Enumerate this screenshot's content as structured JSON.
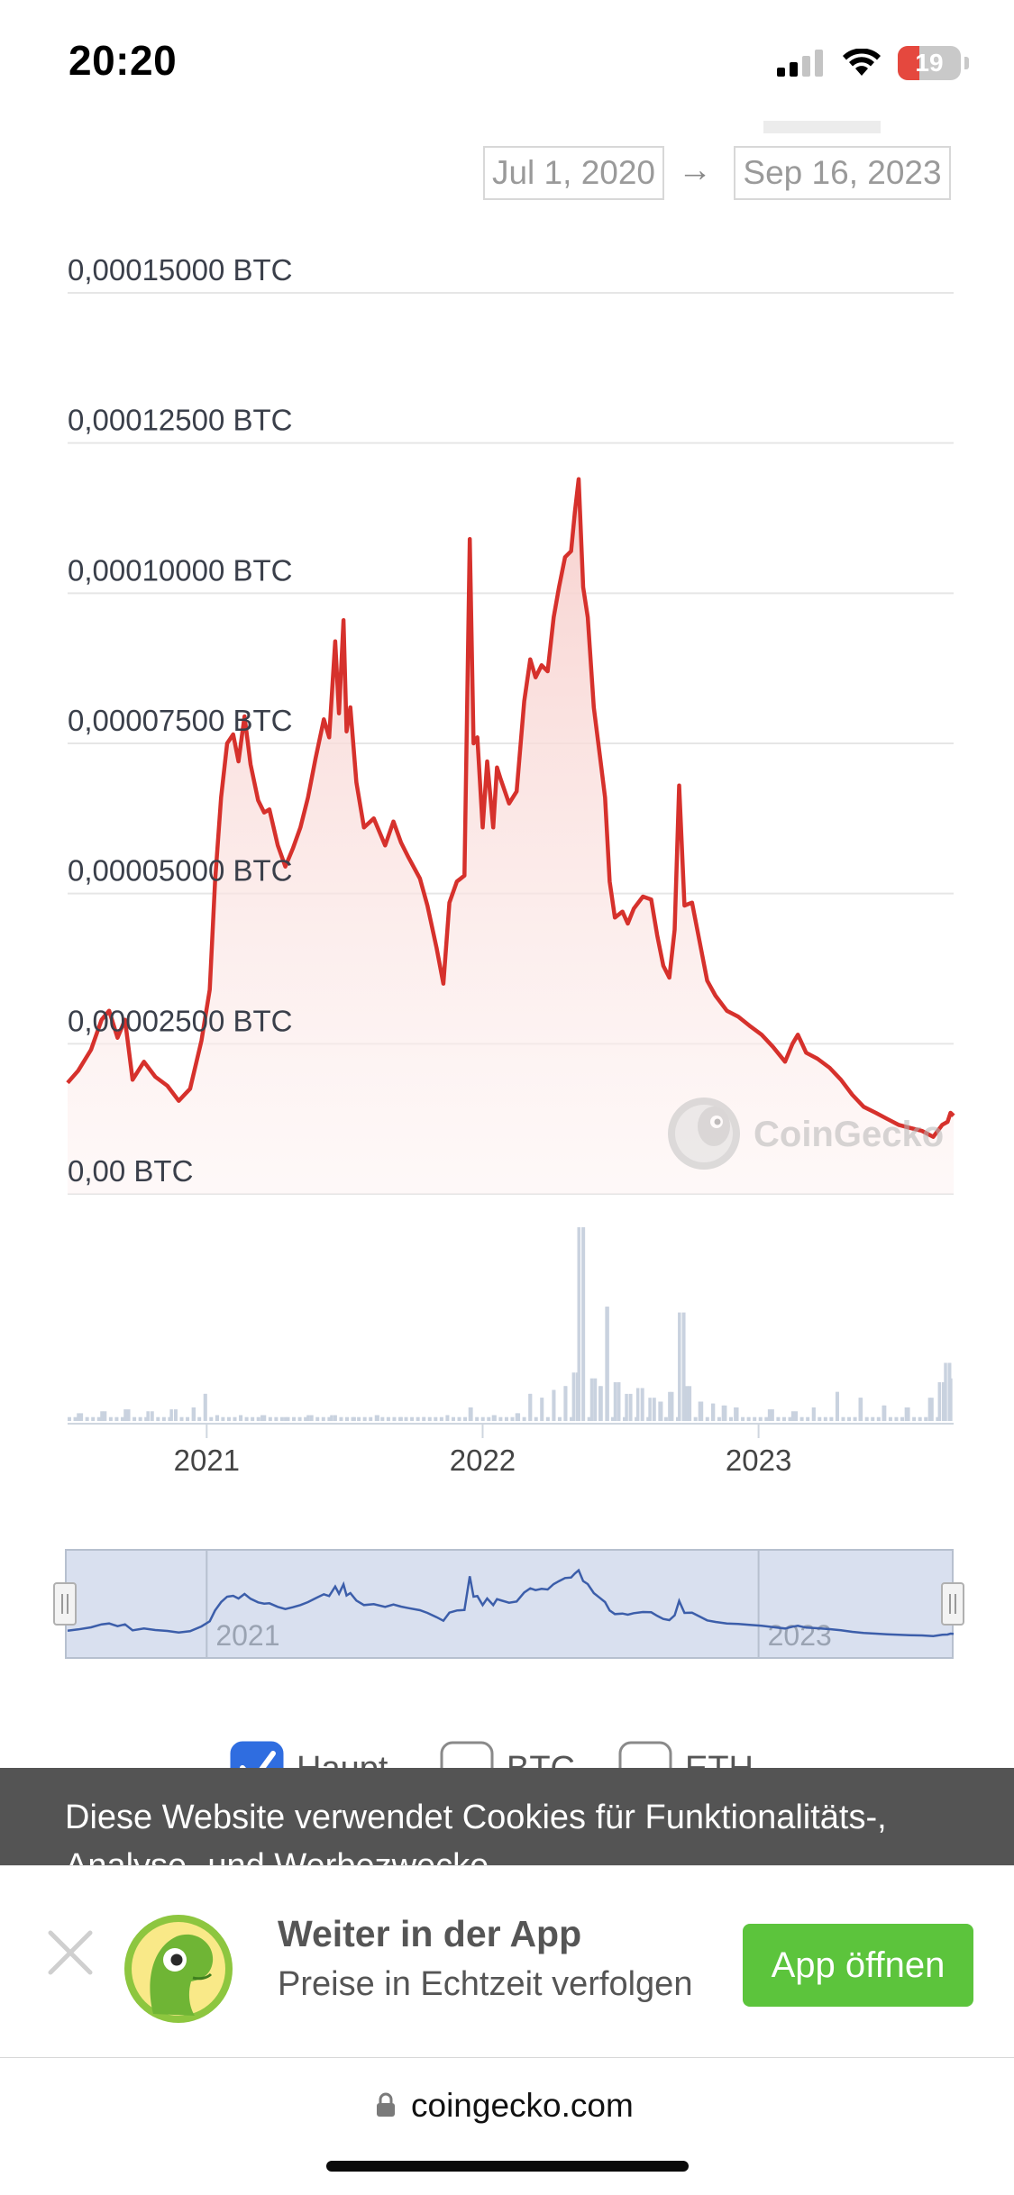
{
  "status_bar": {
    "time": "20:20",
    "battery_level": "19",
    "icons": [
      "cellular-signal-icon",
      "wifi-icon",
      "battery-icon"
    ]
  },
  "date_range": {
    "from": "Jul 1, 2020",
    "arrow": "→",
    "to": "Sep 16, 2023"
  },
  "watermark": "CoinGecko",
  "chart_data": {
    "type": "area",
    "price_color": "#d6312c",
    "volume_color": "#c9d2df",
    "navigator_color": "#3c5eaa",
    "y_unit": "BTC",
    "y_tick_labels": [
      "0,00015000 BTC",
      "0,00012500 BTC",
      "0,00010000 BTC",
      "0,00007500 BTC",
      "0,00005000 BTC",
      "0,00002500 BTC",
      "0,00 BTC"
    ],
    "y_ticks": [
      0.00015,
      0.000125,
      0.0001,
      7.5e-05,
      5e-05,
      2.5e-05,
      0
    ],
    "ylim": [
      0,
      0.00015
    ],
    "x_tick_labels": [
      "2021",
      "2022",
      "2023"
    ],
    "x_ticks": [
      "2021-01-01",
      "2022-01-01",
      "2023-01-01"
    ],
    "xlim": [
      "2020-07-01",
      "2023-09-16"
    ],
    "grid": true,
    "series": [
      {
        "points": [
          [
            "2020-07-01",
            1.85e-05
          ],
          [
            "2020-07-15",
            2.05e-05
          ],
          [
            "2020-08-01",
            2.4e-05
          ],
          [
            "2020-08-15",
            2.9e-05
          ],
          [
            "2020-08-25",
            3.05e-05
          ],
          [
            "2020-09-05",
            2.6e-05
          ],
          [
            "2020-09-15",
            2.9e-05
          ],
          [
            "2020-09-25",
            1.9e-05
          ],
          [
            "2020-10-10",
            2.2e-05
          ],
          [
            "2020-10-25",
            1.95e-05
          ],
          [
            "2020-11-10",
            1.8e-05
          ],
          [
            "2020-11-25",
            1.55e-05
          ],
          [
            "2020-12-10",
            1.75e-05
          ],
          [
            "2020-12-25",
            2.55e-05
          ],
          [
            "2021-01-05",
            3.4e-05
          ],
          [
            "2021-01-12",
            5.2e-05
          ],
          [
            "2021-01-20",
            6.6e-05
          ],
          [
            "2021-01-28",
            7.5e-05
          ],
          [
            "2021-02-05",
            7.65e-05
          ],
          [
            "2021-02-12",
            7.2e-05
          ],
          [
            "2021-02-20",
            7.95e-05
          ],
          [
            "2021-02-28",
            7.15e-05
          ],
          [
            "2021-03-10",
            6.55e-05
          ],
          [
            "2021-03-18",
            6.35e-05
          ],
          [
            "2021-03-25",
            6.4e-05
          ],
          [
            "2021-04-05",
            5.8e-05
          ],
          [
            "2021-04-15",
            5.45e-05
          ],
          [
            "2021-04-25",
            5.75e-05
          ],
          [
            "2021-05-05",
            6.1e-05
          ],
          [
            "2021-05-15",
            6.6e-05
          ],
          [
            "2021-05-25",
            7.25e-05
          ],
          [
            "2021-06-05",
            7.9e-05
          ],
          [
            "2021-06-12",
            7.6e-05
          ],
          [
            "2021-06-20",
            9.2e-05
          ],
          [
            "2021-06-25",
            8e-05
          ],
          [
            "2021-07-01",
            9.55e-05
          ],
          [
            "2021-07-05",
            7.7e-05
          ],
          [
            "2021-07-10",
            8.1e-05
          ],
          [
            "2021-07-18",
            6.85e-05
          ],
          [
            "2021-07-28",
            6.1e-05
          ],
          [
            "2021-08-10",
            6.25e-05
          ],
          [
            "2021-08-25",
            5.8e-05
          ],
          [
            "2021-09-05",
            6.2e-05
          ],
          [
            "2021-09-15",
            5.85e-05
          ],
          [
            "2021-09-25",
            5.6e-05
          ],
          [
            "2021-10-10",
            5.25e-05
          ],
          [
            "2021-10-20",
            4.8e-05
          ],
          [
            "2021-11-01",
            4.1e-05
          ],
          [
            "2021-11-10",
            3.5e-05
          ],
          [
            "2021-11-18",
            4.85e-05
          ],
          [
            "2021-11-28",
            5.2e-05
          ],
          [
            "2021-12-08",
            5.3e-05
          ],
          [
            "2021-12-15",
            0.000109
          ],
          [
            "2021-12-20",
            7.5e-05
          ],
          [
            "2021-12-25",
            7.6e-05
          ],
          [
            "2022-01-01",
            6.1e-05
          ],
          [
            "2022-01-07",
            7.2e-05
          ],
          [
            "2022-01-15",
            6.1e-05
          ],
          [
            "2022-01-20",
            7.1e-05
          ],
          [
            "2022-01-25",
            6.9e-05
          ],
          [
            "2022-02-05",
            6.5e-05
          ],
          [
            "2022-02-15",
            6.7e-05
          ],
          [
            "2022-02-25",
            8.2e-05
          ],
          [
            "2022-03-05",
            8.9e-05
          ],
          [
            "2022-03-12",
            8.6e-05
          ],
          [
            "2022-03-20",
            8.8e-05
          ],
          [
            "2022-03-28",
            8.7e-05
          ],
          [
            "2022-04-05",
            9.6e-05
          ],
          [
            "2022-04-12",
            0.000101
          ],
          [
            "2022-04-20",
            0.000106
          ],
          [
            "2022-04-28",
            0.000107
          ],
          [
            "2022-05-03",
            0.0001135
          ],
          [
            "2022-05-08",
            0.000119
          ],
          [
            "2022-05-14",
            0.000101
          ],
          [
            "2022-05-20",
            9.6e-05
          ],
          [
            "2022-05-28",
            8.1e-05
          ],
          [
            "2022-06-05",
            7.3e-05
          ],
          [
            "2022-06-12",
            6.6e-05
          ],
          [
            "2022-06-18",
            5.2e-05
          ],
          [
            "2022-06-25",
            4.6e-05
          ],
          [
            "2022-07-05",
            4.7e-05
          ],
          [
            "2022-07-12",
            4.5e-05
          ],
          [
            "2022-07-20",
            4.75e-05
          ],
          [
            "2022-08-01",
            4.95e-05
          ],
          [
            "2022-08-12",
            4.9e-05
          ],
          [
            "2022-08-20",
            4.3e-05
          ],
          [
            "2022-08-28",
            3.8e-05
          ],
          [
            "2022-09-05",
            3.6e-05
          ],
          [
            "2022-09-12",
            4.4e-05
          ],
          [
            "2022-09-18",
            6.8e-05
          ],
          [
            "2022-09-25",
            4.8e-05
          ],
          [
            "2022-10-05",
            4.85e-05
          ],
          [
            "2022-10-15",
            4.2e-05
          ],
          [
            "2022-10-25",
            3.55e-05
          ],
          [
            "2022-11-05",
            3.3e-05
          ],
          [
            "2022-11-20",
            3.05e-05
          ],
          [
            "2022-12-05",
            2.95e-05
          ],
          [
            "2022-12-20",
            2.8e-05
          ],
          [
            "2023-01-05",
            2.65e-05
          ],
          [
            "2023-01-20",
            2.45e-05
          ],
          [
            "2023-02-05",
            2.2e-05
          ],
          [
            "2023-02-15",
            2.5e-05
          ],
          [
            "2023-02-22",
            2.65e-05
          ],
          [
            "2023-03-05",
            2.35e-05
          ],
          [
            "2023-03-20",
            2.25e-05
          ],
          [
            "2023-04-05",
            2.1e-05
          ],
          [
            "2023-04-20",
            1.9e-05
          ],
          [
            "2023-05-05",
            1.65e-05
          ],
          [
            "2023-05-20",
            1.45e-05
          ],
          [
            "2023-06-05",
            1.35e-05
          ],
          [
            "2023-06-20",
            1.25e-05
          ],
          [
            "2023-07-05",
            1.15e-05
          ],
          [
            "2023-07-20",
            1.1e-05
          ],
          [
            "2023-08-05",
            1.05e-05
          ],
          [
            "2023-08-20",
            9.5e-06
          ],
          [
            "2023-09-01",
            1.15e-05
          ],
          [
            "2023-09-08",
            1.2e-05
          ],
          [
            "2023-09-12",
            1.35e-05
          ],
          [
            "2023-09-16",
            1.3e-05
          ]
        ]
      }
    ],
    "volume": [
      [
        "2020-07-15",
        0.04
      ],
      [
        "2020-08-15",
        0.05
      ],
      [
        "2020-09-15",
        0.06
      ],
      [
        "2020-10-15",
        0.05
      ],
      [
        "2020-11-15",
        0.06
      ],
      [
        "2020-12-15",
        0.07
      ],
      [
        "2020-12-30",
        0.14
      ],
      [
        "2021-01-15",
        0.03
      ],
      [
        "2021-02-15",
        0.03
      ],
      [
        "2021-03-15",
        0.03
      ],
      [
        "2021-04-15",
        0.02
      ],
      [
        "2021-05-15",
        0.03
      ],
      [
        "2021-06-15",
        0.03
      ],
      [
        "2021-07-15",
        0.02
      ],
      [
        "2021-08-15",
        0.03
      ],
      [
        "2021-09-15",
        0.02
      ],
      [
        "2021-10-15",
        0.02
      ],
      [
        "2021-11-15",
        0.03
      ],
      [
        "2021-12-15",
        0.07
      ],
      [
        "2022-01-15",
        0.03
      ],
      [
        "2022-02-15",
        0.04
      ],
      [
        "2022-03-05",
        0.14
      ],
      [
        "2022-03-20",
        0.12
      ],
      [
        "2022-04-05",
        0.16
      ],
      [
        "2022-04-20",
        0.18
      ],
      [
        "2022-05-01",
        0.25
      ],
      [
        "2022-05-08",
        1.0
      ],
      [
        "2022-05-14",
        0.34
      ],
      [
        "2022-05-25",
        0.22
      ],
      [
        "2022-06-05",
        0.18
      ],
      [
        "2022-06-15",
        0.59
      ],
      [
        "2022-06-25",
        0.2
      ],
      [
        "2022-07-10",
        0.14
      ],
      [
        "2022-07-25",
        0.17
      ],
      [
        "2022-08-10",
        0.12
      ],
      [
        "2022-08-25",
        0.1
      ],
      [
        "2022-09-05",
        0.15
      ],
      [
        "2022-09-18",
        0.56
      ],
      [
        "2022-09-28",
        0.18
      ],
      [
        "2022-10-15",
        0.1
      ],
      [
        "2022-11-01",
        0.09
      ],
      [
        "2022-11-15",
        0.08
      ],
      [
        "2022-12-01",
        0.07
      ],
      [
        "2023-01-15",
        0.06
      ],
      [
        "2023-02-15",
        0.05
      ],
      [
        "2023-03-15",
        0.07
      ],
      [
        "2023-04-15",
        0.15
      ],
      [
        "2023-05-15",
        0.12
      ],
      [
        "2023-06-15",
        0.08
      ],
      [
        "2023-07-15",
        0.07
      ],
      [
        "2023-08-15",
        0.12
      ],
      [
        "2023-08-28",
        0.2
      ],
      [
        "2023-09-05",
        0.3
      ],
      [
        "2023-09-12",
        0.22
      ]
    ],
    "navigator": {
      "x_tick_labels": [
        "2021",
        "2023"
      ],
      "x_ticks": [
        "2021-01-01",
        "2023-01-01"
      ],
      "selected_range": [
        "2020-07-01",
        "2023-09-16"
      ]
    },
    "legend": [
      {
        "label": "Haupt",
        "checked": true
      },
      {
        "label": "BTC",
        "checked": false
      },
      {
        "label": "ETH",
        "checked": false
      }
    ]
  },
  "cookie_banner": {
    "text": "Diese Website verwendet Cookies für Funktionalitäts-, Analyse- und Werbezwecke."
  },
  "app_banner": {
    "title": "Weiter in der App",
    "subtitle": "Preise in Echtzeit verfolgen",
    "open_button": "App öffnen"
  },
  "url_bar": {
    "domain": "coingecko.com"
  }
}
